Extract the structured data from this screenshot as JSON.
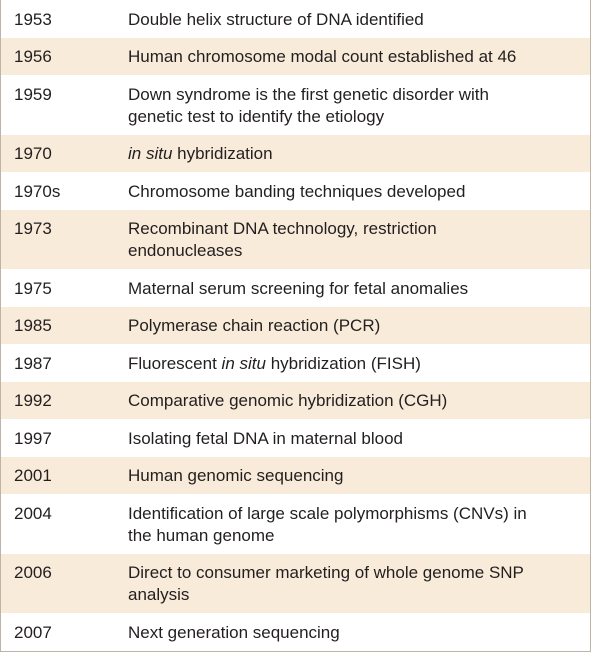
{
  "table": {
    "rows": [
      {
        "year": "1953",
        "lines": [
          [
            {
              "text": "Double helix structure of DNA identified"
            }
          ]
        ]
      },
      {
        "year": "1956",
        "lines": [
          [
            {
              "text": "Human chromosome modal count established at 46"
            }
          ]
        ]
      },
      {
        "year": "1959",
        "lines": [
          [
            {
              "text": "Down syndrome is the first genetic disorder with"
            }
          ],
          [
            {
              "text": "genetic test to identify the etiology"
            }
          ]
        ]
      },
      {
        "year": "1970",
        "lines": [
          [
            {
              "text": "in situ",
              "italic": true
            },
            {
              "text": " hybridization"
            }
          ]
        ]
      },
      {
        "year": "1970s",
        "lines": [
          [
            {
              "text": "Chromosome banding techniques developed"
            }
          ]
        ]
      },
      {
        "year": "1973",
        "lines": [
          [
            {
              "text": "Recombinant DNA technology, restriction"
            }
          ],
          [
            {
              "text": "endonucleases"
            }
          ]
        ]
      },
      {
        "year": "1975",
        "lines": [
          [
            {
              "text": "Maternal serum screening for fetal anomalies"
            }
          ]
        ]
      },
      {
        "year": "1985",
        "lines": [
          [
            {
              "text": "Polymerase chain reaction (PCR)"
            }
          ]
        ]
      },
      {
        "year": "1987",
        "lines": [
          [
            {
              "text": "Fluorescent "
            },
            {
              "text": "in situ",
              "italic": true
            },
            {
              "text": " hybridization (FISH)"
            }
          ]
        ]
      },
      {
        "year": "1992",
        "lines": [
          [
            {
              "text": "Comparative genomic hybridization (CGH)"
            }
          ]
        ]
      },
      {
        "year": "1997",
        "lines": [
          [
            {
              "text": "Isolating fetal DNA in maternal blood"
            }
          ]
        ]
      },
      {
        "year": "2001",
        "lines": [
          [
            {
              "text": "Human genomic sequencing"
            }
          ]
        ]
      },
      {
        "year": "2004",
        "lines": [
          [
            {
              "text": "Identification of large scale polymorphisms (CNVs) in"
            }
          ],
          [
            {
              "text": "the human genome"
            }
          ]
        ]
      },
      {
        "year": "2006",
        "lines": [
          [
            {
              "text": "Direct to consumer marketing of whole genome SNP"
            }
          ],
          [
            {
              "text": "analysis"
            }
          ]
        ]
      },
      {
        "year": "2007",
        "lines": [
          [
            {
              "text": "Next generation sequencing"
            }
          ]
        ]
      }
    ]
  }
}
